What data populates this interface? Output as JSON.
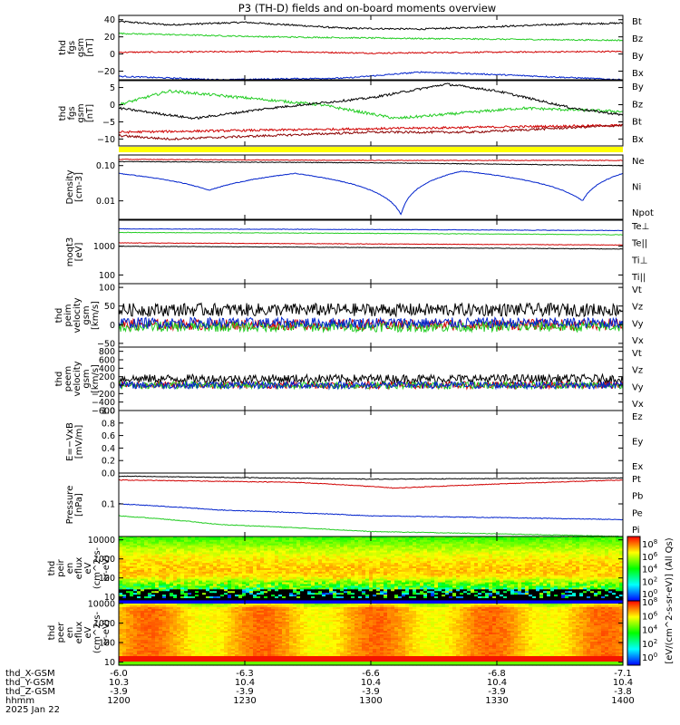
{
  "title": "P3 (TH-D) fields and on-board moments overview",
  "colors": {
    "black": "#000000",
    "red": "#d00000",
    "green": "#22cc22",
    "blue": "#0022cc",
    "darkred": "#8b0000",
    "yellow": "#ffff00"
  },
  "chart_data": [
    {
      "type": "line",
      "ylabel": [
        "thd",
        "fgs",
        "gsm",
        "[nT]"
      ],
      "ylim": [
        -30,
        45
      ],
      "yticks": [
        "40",
        "20",
        "0",
        "−20"
      ],
      "series": [
        {
          "name": "Bt",
          "color": "#000000",
          "x": [
            0,
            0.1,
            0.25,
            0.45,
            0.6,
            0.75,
            0.9,
            1
          ],
          "values": [
            38,
            34,
            37,
            30,
            29,
            32,
            35,
            36
          ]
        },
        {
          "name": "Bz",
          "color": "#d00000",
          "x": [
            0,
            0.3,
            0.5,
            0.7,
            1
          ],
          "values": [
            2,
            3,
            1,
            2,
            3
          ]
        },
        {
          "name": "By",
          "color": "#22cc22",
          "x": [
            0,
            0.3,
            0.6,
            1
          ],
          "values": [
            24,
            20,
            18,
            16
          ]
        },
        {
          "name": "Bx",
          "color": "#0022cc",
          "x": [
            0,
            0.2,
            0.45,
            0.6,
            0.75,
            1
          ],
          "values": [
            -26,
            -30,
            -28,
            -21,
            -24,
            -30
          ]
        }
      ]
    },
    {
      "type": "line",
      "ylabel": [
        "thd",
        "fgs",
        "gsm",
        "[nT]"
      ],
      "ylim": [
        -12,
        7
      ],
      "yticks": [
        "5",
        "0",
        "−5",
        "−10"
      ],
      "series": [
        {
          "name": "By",
          "color": "#22cc22",
          "x": [
            0,
            0.1,
            0.25,
            0.4,
            0.55,
            0.8,
            1
          ],
          "values": [
            0,
            4,
            2,
            0,
            -4,
            -1,
            -2
          ]
        },
        {
          "name": "Bz",
          "color": "#d00000",
          "x": [
            0,
            0.5,
            1
          ],
          "values": [
            -8,
            -7,
            -6
          ]
        },
        {
          "name": "Bt",
          "color": "#8b0000",
          "x": [
            0,
            0.1,
            0.3,
            0.5,
            0.7,
            1
          ],
          "values": [
            -9,
            -10,
            -9,
            -8,
            -8,
            -6
          ]
        },
        {
          "name": "Bx",
          "color": "#000000",
          "x": [
            0,
            0.15,
            0.3,
            0.5,
            0.65,
            0.75,
            0.9,
            1
          ],
          "values": [
            -1,
            -4,
            -1,
            2,
            6,
            4,
            -1,
            -3
          ]
        }
      ]
    },
    {
      "type": "line",
      "ylabel": [
        "Density",
        "[cm-3]"
      ],
      "scale": "log",
      "ylim": [
        0.003,
        0.2
      ],
      "yticks": [
        "0.10",
        "0.01"
      ],
      "series": [
        {
          "name": "Ne",
          "color": "#d00000",
          "x": [
            0,
            0.5,
            1
          ],
          "values": [
            0.15,
            0.14,
            0.14
          ]
        },
        {
          "name": "Ni",
          "color": "#000000",
          "x": [
            0,
            0.5,
            1
          ],
          "values": [
            0.13,
            0.12,
            0.1
          ]
        },
        {
          "name": "Npot",
          "color": "#0022cc",
          "x": [
            0,
            0.18,
            0.35,
            0.56,
            0.68,
            0.92,
            1
          ],
          "values": [
            0.06,
            0.02,
            0.06,
            0.004,
            0.07,
            0.01,
            0.06
          ]
        }
      ]
    },
    {
      "type": "line",
      "ylabel": [
        "moqt3",
        "[eV]"
      ],
      "scale": "log",
      "ylim": [
        50,
        8000
      ],
      "yticks": [
        "1000",
        "100"
      ],
      "series": [
        {
          "name": "Te⊥",
          "color": "#d00000",
          "x": [
            0,
            0.5,
            1
          ],
          "values": [
            1300,
            1200,
            1100
          ]
        },
        {
          "name": "Te||",
          "color": "#000000",
          "x": [
            0,
            0.5,
            1
          ],
          "values": [
            1000,
            900,
            800
          ]
        },
        {
          "name": "Ti⊥",
          "color": "#0022cc",
          "x": [
            0,
            0.5,
            1
          ],
          "values": [
            4000,
            3800,
            3500
          ]
        },
        {
          "name": "Ti||",
          "color": "#22cc22",
          "x": [
            0,
            0.5,
            1
          ],
          "values": [
            3000,
            2800,
            2500
          ]
        }
      ]
    },
    {
      "type": "line",
      "ylabel": [
        "thd",
        "peim",
        "velocity",
        "gsm",
        "[km/s]"
      ],
      "ylim": [
        -60,
        110
      ],
      "yticks": [
        "100",
        "50",
        "0",
        "−50"
      ],
      "series": [
        {
          "name": "Vt",
          "color": "#000000",
          "x": [
            0,
            1
          ],
          "values": [
            40,
            40
          ]
        },
        {
          "name": "Vz",
          "color": "#d00000",
          "x": [
            0,
            1
          ],
          "values": [
            0,
            0
          ]
        },
        {
          "name": "Vy",
          "color": "#22cc22",
          "x": [
            0,
            1
          ],
          "values": [
            -5,
            -5
          ]
        },
        {
          "name": "Vx",
          "color": "#0022cc",
          "x": [
            0,
            1
          ],
          "values": [
            5,
            5
          ]
        }
      ]
    },
    {
      "type": "line",
      "ylabel": [
        "thd",
        "peem",
        "velocity",
        "gsm",
        "[km/s]"
      ],
      "ylim": [
        -600,
        900
      ],
      "yticks": [
        "800",
        "600",
        "400",
        "200",
        "0",
        "−200",
        "−400",
        "−600"
      ],
      "series": [
        {
          "name": "Vt",
          "color": "#000000",
          "x": [
            0,
            1
          ],
          "values": [
            150,
            150
          ]
        },
        {
          "name": "Vz",
          "color": "#d00000",
          "x": [
            0,
            1
          ],
          "values": [
            0,
            0
          ]
        },
        {
          "name": "Vy",
          "color": "#22cc22",
          "x": [
            0,
            1
          ],
          "values": [
            0,
            0
          ]
        },
        {
          "name": "Vx",
          "color": "#0022cc",
          "x": [
            0,
            1
          ],
          "values": [
            0,
            0
          ]
        }
      ]
    },
    {
      "type": "line",
      "ylabel": [
        "E=−VxB",
        "[mV/m]"
      ],
      "ylim": [
        0,
        1
      ],
      "yticks": [
        "1.0",
        "0.8",
        "0.6",
        "0.4",
        "0.2",
        "0.0"
      ],
      "series": [
        {
          "name": "Ez",
          "color": "#d00000",
          "x": [],
          "values": []
        },
        {
          "name": "Ey",
          "color": "#22cc22",
          "x": [],
          "values": []
        },
        {
          "name": "Ex",
          "color": "#0022cc",
          "x": [],
          "values": []
        }
      ]
    },
    {
      "type": "line",
      "ylabel": [
        "Pressure",
        "[nPa]"
      ],
      "scale": "log",
      "ylim": [
        0.015,
        0.6
      ],
      "yticks": [
        "0.1"
      ],
      "series": [
        {
          "name": "Pt",
          "color": "#000000",
          "x": [
            0,
            0.5,
            1
          ],
          "values": [
            0.5,
            0.42,
            0.45
          ]
        },
        {
          "name": "Pb",
          "color": "#d00000",
          "x": [
            0,
            0.35,
            0.55,
            1
          ],
          "values": [
            0.4,
            0.35,
            0.25,
            0.4
          ]
        },
        {
          "name": "Pe",
          "color": "#22cc22",
          "x": [
            0,
            0.2,
            0.5,
            1
          ],
          "values": [
            0.05,
            0.03,
            0.02,
            0.015
          ]
        },
        {
          "name": "Pi",
          "color": "#0022cc",
          "x": [
            0,
            0.2,
            0.5,
            1
          ],
          "values": [
            0.1,
            0.07,
            0.05,
            0.04
          ]
        }
      ]
    },
    {
      "type": "heatmap",
      "ylabel": [
        "thd",
        "peir",
        "en",
        "eflux",
        "eV",
        "(cm^2-s-",
        "sr-eV)"
      ],
      "scale": "log",
      "ylim": [
        7,
        15000
      ],
      "yticks": [
        "10000",
        "1000",
        "100",
        "10"
      ]
    },
    {
      "type": "heatmap",
      "ylabel": [
        "thd",
        "peer",
        "en",
        "eflux",
        "eV",
        "(cm^2-s-",
        "sr-eV)"
      ],
      "scale": "log",
      "ylim": [
        7,
        15000
      ],
      "yticks": [
        "10000",
        "1000",
        "100",
        "10"
      ]
    }
  ],
  "colorbar": {
    "label": "[eV/(cm^2-s-sr-eV)] (All Qs)",
    "ticks": [
      "10^8",
      "10^6",
      "10^4",
      "10^2",
      "10^0",
      "10^8",
      "10^6",
      "10^4",
      "10^2",
      "10^0"
    ]
  },
  "xaxis": {
    "row_labels": [
      "thd_X-GSM",
      "thd_Y-GSM",
      "thd_Z-GSM",
      "hhmm",
      "2025 Jan 22"
    ],
    "ticks": [
      {
        "x": [
          "-6.0",
          "10.3",
          "-3.9",
          "1200"
        ]
      },
      {
        "x": [
          "-6.3",
          "10.4",
          "-3.9",
          "1230"
        ]
      },
      {
        "x": [
          "-6.6",
          "10.4",
          "-3.9",
          "1300"
        ]
      },
      {
        "x": [
          "-6.8",
          "10.4",
          "-3.9",
          "1330"
        ]
      },
      {
        "x": [
          "-7.1",
          "10.4",
          "-3.8",
          "1400"
        ]
      }
    ]
  }
}
